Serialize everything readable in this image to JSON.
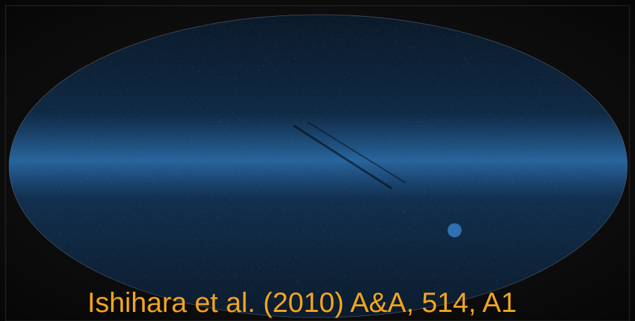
{
  "caption": "Ishihara et al. (2010) A&A, 514, A1"
}
